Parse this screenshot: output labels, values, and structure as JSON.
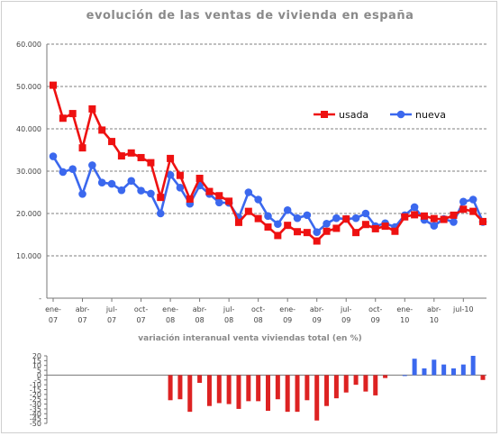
{
  "chart_data": [
    {
      "type": "line",
      "title": "evolución de las ventas de vivienda en españa",
      "ylim": [
        0,
        60000
      ],
      "yticks": [
        "-",
        "10.000",
        "20.000",
        "30.000",
        "40.000",
        "50.000",
        "60.000"
      ],
      "xtick_labels": [
        [
          "ene-",
          "07"
        ],
        [
          "abr-",
          "07"
        ],
        [
          "jul-",
          "07"
        ],
        [
          "oct-",
          "07"
        ],
        [
          "ene-",
          "08"
        ],
        [
          "abr-",
          "08"
        ],
        [
          "jul-",
          "08"
        ],
        [
          "oct-",
          "08"
        ],
        [
          "ene-",
          "09"
        ],
        [
          "abr-",
          "09"
        ],
        [
          "jul-",
          "09"
        ],
        [
          "oct-",
          "09"
        ],
        [
          "ene-",
          "10"
        ],
        [
          "abr-",
          "10"
        ],
        [
          "jul-10",
          ""
        ]
      ],
      "x_start_month": "2007-01",
      "grid": "horizontal dashed",
      "legend_position": "right",
      "series": [
        {
          "name": "usada",
          "color": "#ee1111",
          "values": [
            50300,
            42500,
            43600,
            35500,
            44700,
            39700,
            37000,
            33600,
            34300,
            33200,
            32000,
            23800,
            33000,
            29000,
            23400,
            28300,
            25200,
            24200,
            22900,
            17900,
            20500,
            18800,
            16800,
            14800,
            17200,
            15700,
            15500,
            13500,
            15800,
            16500,
            18700,
            15500,
            17400,
            16400,
            17000,
            15800,
            19200,
            19700,
            19400,
            18800,
            18600,
            19600,
            21000,
            20500,
            18100
          ]
        },
        {
          "name": "nueva",
          "color": "#3b68ee",
          "values": [
            33500,
            29800,
            30500,
            24600,
            31400,
            27300,
            27000,
            25500,
            27700,
            25400,
            24700,
            20000,
            29100,
            26100,
            22300,
            26600,
            24600,
            22600,
            22500,
            19000,
            25000,
            23300,
            19400,
            17500,
            20800,
            18900,
            19600,
            15600,
            17600,
            18900,
            18700,
            18900,
            20000,
            17000,
            17700,
            16800,
            19600,
            21500,
            18500,
            17100,
            18700,
            18000,
            22800,
            23300,
            18000
          ]
        }
      ]
    },
    {
      "type": "bar",
      "title": "variación interanual venta viviendas total (en %)",
      "ylim": [
        -50,
        20
      ],
      "yticks": [
        "-50",
        "-45",
        "-40",
        "-35",
        "-30",
        "-25",
        "-20",
        "-15",
        "-10",
        "-5",
        "0",
        "5",
        "10",
        "15",
        "20"
      ],
      "colors": {
        "negative": "#dd2222",
        "positive": "#3b68ee"
      },
      "values": [
        null,
        null,
        null,
        null,
        null,
        null,
        null,
        null,
        null,
        null,
        null,
        null,
        -26,
        -25,
        -38,
        -8,
        -32,
        -29,
        -30,
        -35,
        -27,
        -27,
        -37,
        -25,
        -38,
        -38,
        -26,
        -47,
        -32,
        -24,
        -18,
        -10,
        -17,
        -21,
        -3,
        null,
        0,
        17,
        7,
        16,
        11,
        7,
        11,
        20,
        -5
      ]
    }
  ]
}
